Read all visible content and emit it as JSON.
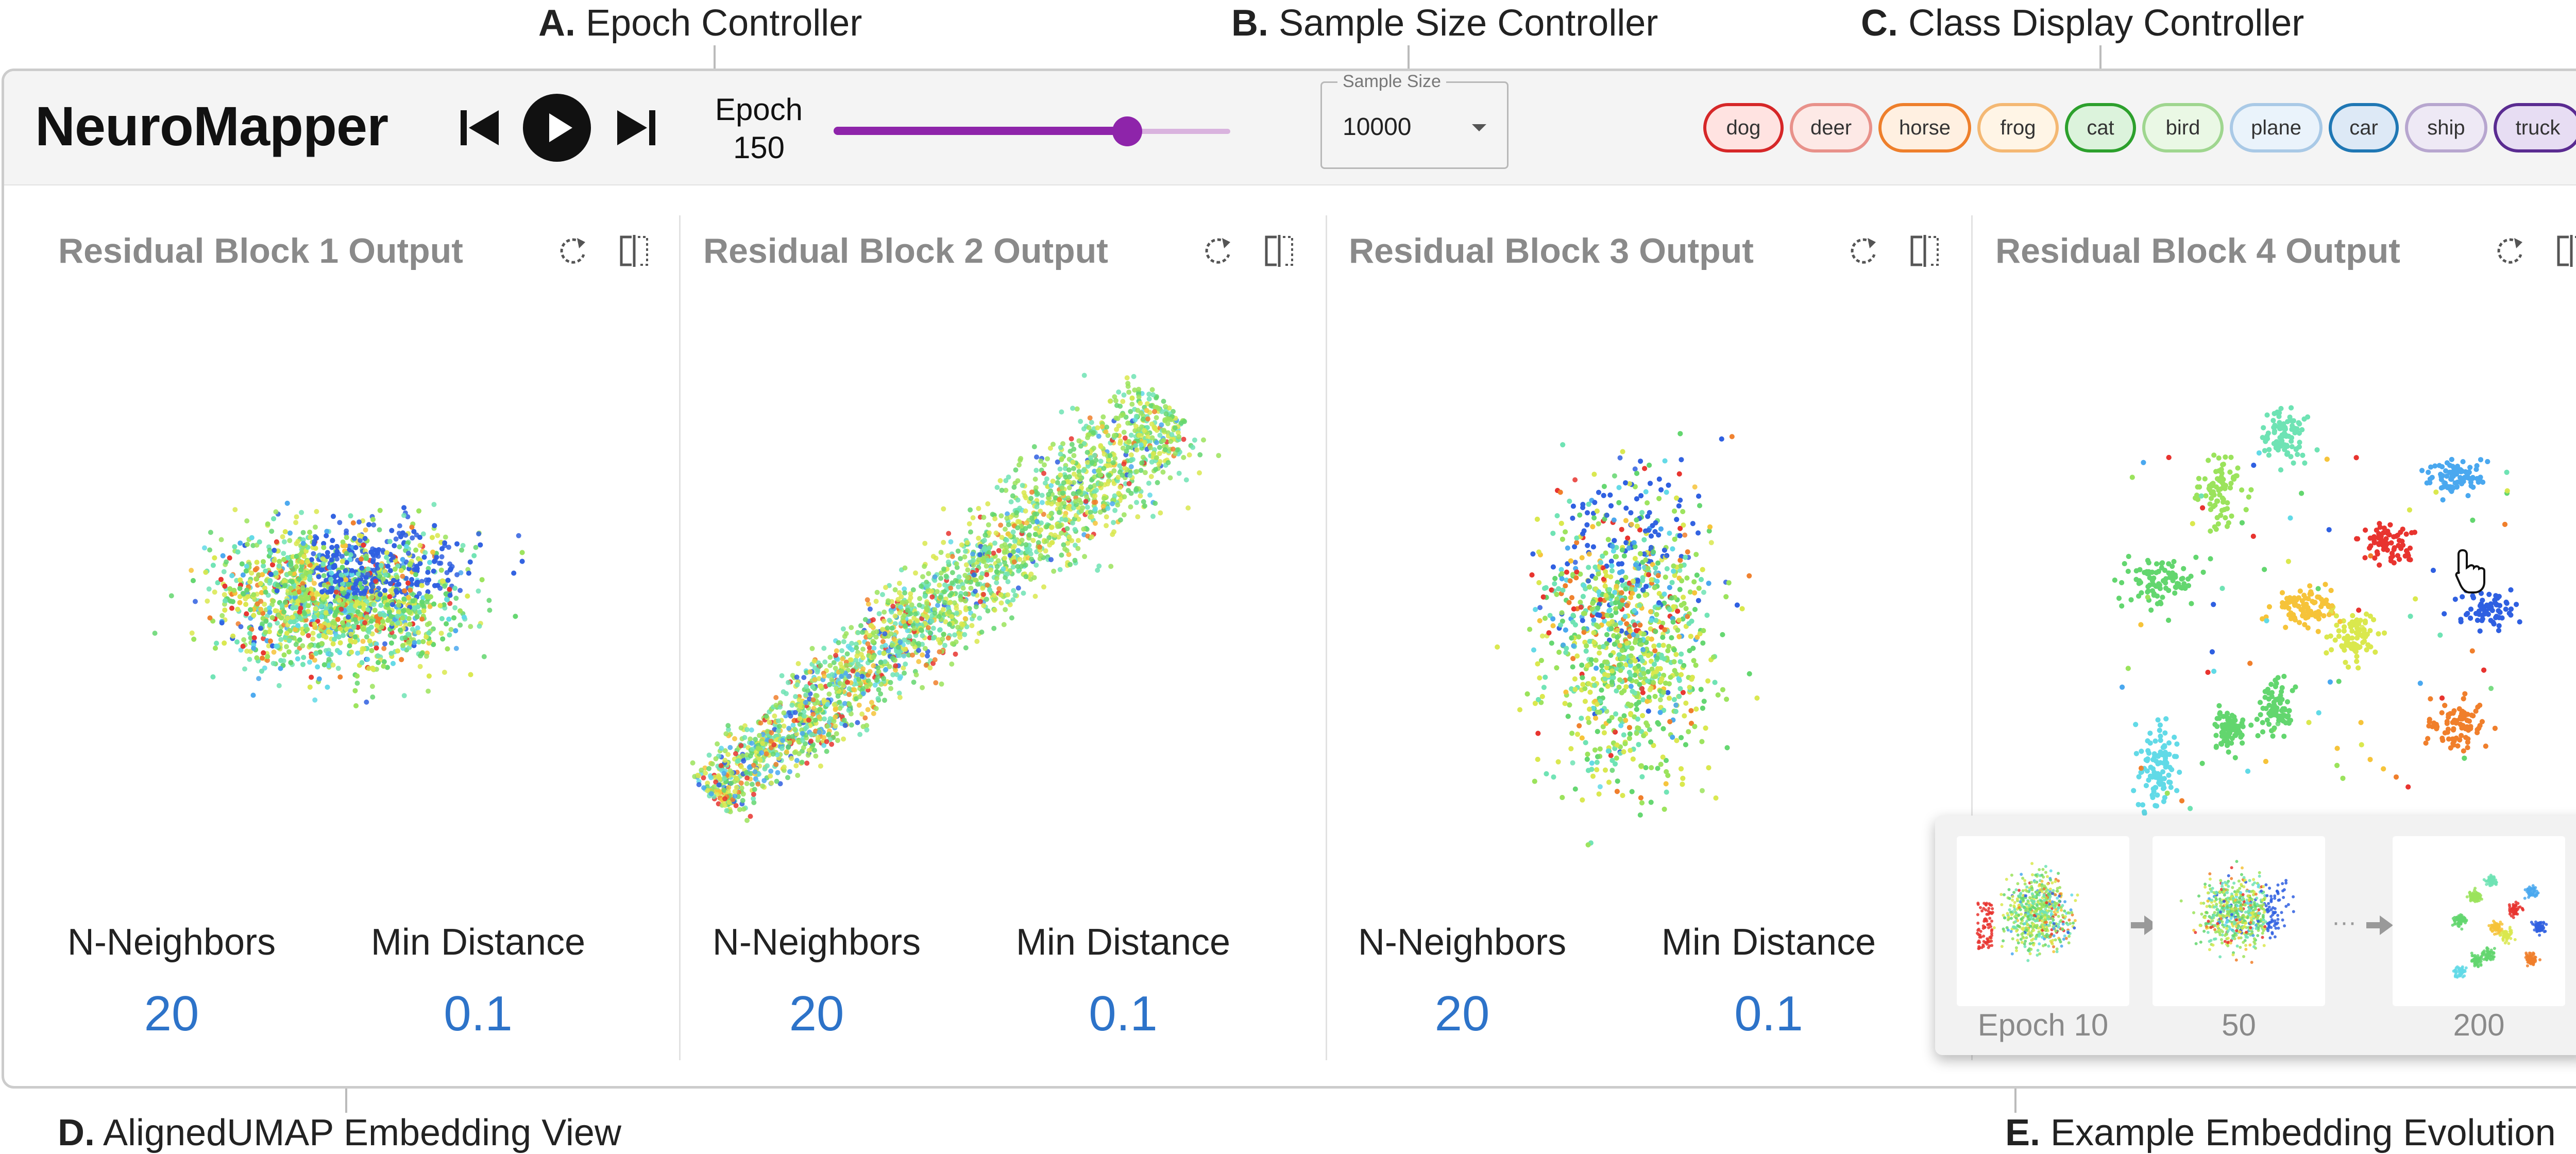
{
  "callouts": {
    "a": {
      "letter": "A.",
      "text": "Epoch Controller"
    },
    "b": {
      "letter": "B.",
      "text": "Sample Size Controller"
    },
    "c": {
      "letter": "C.",
      "text": "Class Display Controller"
    },
    "d": {
      "letter": "D.",
      "text": "AlignedUMAP Embedding View"
    },
    "e": {
      "letter": "E.",
      "text": "Example Embedding Evolution"
    }
  },
  "app": {
    "title": "NeuroMapper"
  },
  "epoch": {
    "label": "Epoch",
    "value": "150",
    "progress": 0.74
  },
  "sample_size": {
    "label": "Sample Size",
    "value": "10000"
  },
  "classes": [
    {
      "name": "dog",
      "color": "#d62728",
      "fill": "#ffe3e1"
    },
    {
      "name": "deer",
      "color": "#e8918a",
      "fill": "#fde9e6"
    },
    {
      "name": "horse",
      "color": "#ee7f2b",
      "fill": "#fff0e1"
    },
    {
      "name": "frog",
      "color": "#f4b873",
      "fill": "#fff5e6"
    },
    {
      "name": "cat",
      "color": "#2ca02c",
      "fill": "#dcf3dc"
    },
    {
      "name": "bird",
      "color": "#9fd68f",
      "fill": "#eaf8e5"
    },
    {
      "name": "plane",
      "color": "#a9c9e6",
      "fill": "#eaf3fb"
    },
    {
      "name": "car",
      "color": "#1f77b4",
      "fill": "#dde9f6"
    },
    {
      "name": "ship",
      "color": "#b7a6cf",
      "fill": "#eee9f5"
    },
    {
      "name": "truck",
      "color": "#5a2b91",
      "fill": "#e7ddf3"
    }
  ],
  "panels": [
    {
      "title": "Residual Block 1 Output",
      "n_neighbors_label": "N-Neighbors",
      "n_neighbors": "20",
      "min_distance_label": "Min Distance",
      "min_distance": "0.1"
    },
    {
      "title": "Residual Block 2 Output",
      "n_neighbors_label": "N-Neighbors",
      "n_neighbors": "20",
      "min_distance_label": "Min Distance",
      "min_distance": "0.1"
    },
    {
      "title": "Residual Block 3 Output",
      "n_neighbors_label": "N-Neighbors",
      "n_neighbors": "20",
      "min_distance_label": "Min Distance",
      "min_distance": "0.1"
    },
    {
      "title": "Residual Block 4 Output"
    }
  ],
  "evolution": {
    "labels": [
      "Epoch 10",
      "50",
      "200"
    ],
    "ellipsis": "···"
  },
  "icons": {
    "skip_back": "skip-back-icon",
    "play": "play-icon",
    "skip_forward": "skip-forward-icon",
    "refresh": "refresh-icon",
    "split": "split-view-icon",
    "cursor": "hand-cursor-icon"
  },
  "point_palette": [
    "#e8342f",
    "#f07f2c",
    "#f6c33a",
    "#d9e84d",
    "#9be35c",
    "#63d66f",
    "#6fe3b4",
    "#62d9e6",
    "#4aa8ee",
    "#2f5fe0"
  ]
}
